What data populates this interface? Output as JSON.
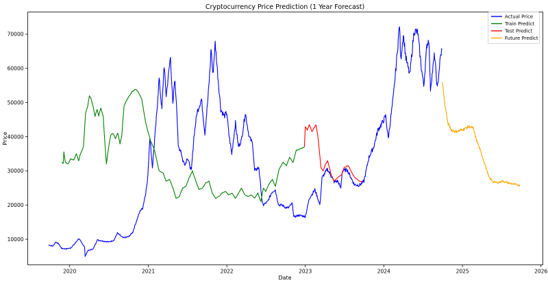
{
  "chart_data": {
    "type": "line",
    "title": "Cryptocurrency Price Prediction (1 Year Forecast)",
    "xlabel": "Date",
    "ylabel": "Price",
    "xlim": [
      "2019-06-20",
      "2026-01-10"
    ],
    "ylim": [
      2500,
      76500
    ],
    "x_ticks": [
      "2020",
      "2021",
      "2022",
      "2023",
      "2024",
      "2025",
      "2026"
    ],
    "y_ticks": [
      10000,
      20000,
      30000,
      40000,
      50000,
      60000,
      70000
    ],
    "grid": false,
    "legend_position": "top-right",
    "series": [
      {
        "name": "Actual Price",
        "color": "#0000ff",
        "points": [
          [
            "2019-09-25",
            8300
          ],
          [
            "2019-10-15",
            8000
          ],
          [
            "2019-10-28",
            9200
          ],
          [
            "2019-11-10",
            8700
          ],
          [
            "2019-11-25",
            7300
          ],
          [
            "2019-12-15",
            7200
          ],
          [
            "2020-01-05",
            7400
          ],
          [
            "2020-01-25",
            8700
          ],
          [
            "2020-02-12",
            10200
          ],
          [
            "2020-03-01",
            8600
          ],
          [
            "2020-03-10",
            7800
          ],
          [
            "2020-03-13",
            5000
          ],
          [
            "2020-03-25",
            6600
          ],
          [
            "2020-04-20",
            7200
          ],
          [
            "2020-05-08",
            9800
          ],
          [
            "2020-06-01",
            9500
          ],
          [
            "2020-07-01",
            9200
          ],
          [
            "2020-07-25",
            9700
          ],
          [
            "2020-08-10",
            11800
          ],
          [
            "2020-09-05",
            10400
          ],
          [
            "2020-10-01",
            10700
          ],
          [
            "2020-10-20",
            12000
          ],
          [
            "2020-11-05",
            15000
          ],
          [
            "2020-11-25",
            18500
          ],
          [
            "2020-12-05",
            19000
          ],
          [
            "2020-12-18",
            23000
          ],
          [
            "2020-12-28",
            27000
          ],
          [
            "2021-01-08",
            40000
          ],
          [
            "2021-01-20",
            31000
          ],
          [
            "2021-02-08",
            46000
          ],
          [
            "2021-02-20",
            57000
          ],
          [
            "2021-03-05",
            48000
          ],
          [
            "2021-03-15",
            61000
          ],
          [
            "2021-03-25",
            52000
          ],
          [
            "2021-04-14",
            63500
          ],
          [
            "2021-04-25",
            49000
          ],
          [
            "2021-05-03",
            57000
          ],
          [
            "2021-05-12",
            50000
          ],
          [
            "2021-05-20",
            37000
          ],
          [
            "2021-06-01",
            36000
          ],
          [
            "2021-06-10",
            33000
          ],
          [
            "2021-06-22",
            32000
          ],
          [
            "2021-07-01",
            34000
          ],
          [
            "2021-07-20",
            30000
          ],
          [
            "2021-08-01",
            40000
          ],
          [
            "2021-08-15",
            47000
          ],
          [
            "2021-09-05",
            51000
          ],
          [
            "2021-09-21",
            41000
          ],
          [
            "2021-10-05",
            51000
          ],
          [
            "2021-10-15",
            60000
          ],
          [
            "2021-10-20",
            66000
          ],
          [
            "2021-10-28",
            58000
          ],
          [
            "2021-11-08",
            67500
          ],
          [
            "2021-11-20",
            58000
          ],
          [
            "2021-12-04",
            48000
          ],
          [
            "2021-12-20",
            46000
          ],
          [
            "2022-01-01",
            47000
          ],
          [
            "2022-01-10",
            41000
          ],
          [
            "2022-01-24",
            35000
          ],
          [
            "2022-02-10",
            44000
          ],
          [
            "2022-02-24",
            37000
          ],
          [
            "2022-03-10",
            39000
          ],
          [
            "2022-03-28",
            47000
          ],
          [
            "2022-04-15",
            40000
          ],
          [
            "2022-05-01",
            38000
          ],
          [
            "2022-05-10",
            30000
          ],
          [
            "2022-05-30",
            31000
          ],
          [
            "2022-06-15",
            20500
          ],
          [
            "2022-06-20",
            20000
          ],
          [
            "2022-07-10",
            21000
          ],
          [
            "2022-07-30",
            23800
          ],
          [
            "2022-08-14",
            24500
          ],
          [
            "2022-08-30",
            20000
          ],
          [
            "2022-09-15",
            20000
          ],
          [
            "2022-10-01",
            19300
          ],
          [
            "2022-10-15",
            19200
          ],
          [
            "2022-11-01",
            20500
          ],
          [
            "2022-11-09",
            16500
          ],
          [
            "2022-12-01",
            17000
          ],
          [
            "2022-12-20",
            16800
          ],
          [
            "2023-01-01",
            16600
          ],
          [
            "2023-01-20",
            22000
          ],
          [
            "2023-02-15",
            24500
          ],
          [
            "2023-03-10",
            20000
          ],
          [
            "2023-03-20",
            28000
          ],
          [
            "2023-04-14",
            30500
          ],
          [
            "2023-05-01",
            28500
          ],
          [
            "2023-05-15",
            26800
          ],
          [
            "2023-06-01",
            27000
          ],
          [
            "2023-06-15",
            25000
          ],
          [
            "2023-06-22",
            30000
          ],
          [
            "2023-07-15",
            30300
          ],
          [
            "2023-08-17",
            26000
          ],
          [
            "2023-09-10",
            25800
          ],
          [
            "2023-10-01",
            27000
          ],
          [
            "2023-10-24",
            34000
          ],
          [
            "2023-11-15",
            37000
          ],
          [
            "2023-12-05",
            42000
          ],
          [
            "2023-12-20",
            43500
          ],
          [
            "2024-01-10",
            46000
          ],
          [
            "2024-01-22",
            39500
          ],
          [
            "2024-02-15",
            52000
          ],
          [
            "2024-02-28",
            61000
          ],
          [
            "2024-03-08",
            68000
          ],
          [
            "2024-03-14",
            73000
          ],
          [
            "2024-03-20",
            62500
          ],
          [
            "2024-04-01",
            70000
          ],
          [
            "2024-04-13",
            63000
          ],
          [
            "2024-05-01",
            58000
          ],
          [
            "2024-05-21",
            71000
          ],
          [
            "2024-06-07",
            70500
          ],
          [
            "2024-06-24",
            60000
          ],
          [
            "2024-07-05",
            55000
          ],
          [
            "2024-07-20",
            67000
          ],
          [
            "2024-07-29",
            68500
          ],
          [
            "2024-08-05",
            54000
          ],
          [
            "2024-08-24",
            64000
          ],
          [
            "2024-09-06",
            54000
          ],
          [
            "2024-09-20",
            63000
          ],
          [
            "2024-09-27",
            65500
          ]
        ]
      },
      {
        "name": "Train Predict",
        "color": "#008000",
        "points": [
          [
            "2019-11-25",
            32500
          ],
          [
            "2019-12-02",
            32200
          ],
          [
            "2019-12-05",
            35500
          ],
          [
            "2019-12-12",
            32500
          ],
          [
            "2019-12-25",
            32000
          ],
          [
            "2020-01-05",
            33500
          ],
          [
            "2020-01-20",
            33200
          ],
          [
            "2020-02-01",
            35000
          ],
          [
            "2020-02-12",
            33000
          ],
          [
            "2020-02-20",
            35000
          ],
          [
            "2020-03-05",
            37000
          ],
          [
            "2020-03-15",
            47000
          ],
          [
            "2020-03-25",
            49000
          ],
          [
            "2020-04-02",
            52000
          ],
          [
            "2020-04-10",
            51000
          ],
          [
            "2020-04-20",
            48500
          ],
          [
            "2020-04-28",
            46000
          ],
          [
            "2020-05-08",
            48000
          ],
          [
            "2020-05-15",
            46000
          ],
          [
            "2020-05-25",
            48500
          ],
          [
            "2020-06-05",
            46000
          ],
          [
            "2020-06-12",
            39000
          ],
          [
            "2020-06-20",
            32000
          ],
          [
            "2020-06-28",
            36000
          ],
          [
            "2020-07-10",
            40500
          ],
          [
            "2020-07-20",
            41000
          ],
          [
            "2020-08-01",
            39500
          ],
          [
            "2020-08-12",
            41000
          ],
          [
            "2020-08-22",
            38000
          ],
          [
            "2020-08-30",
            40000
          ],
          [
            "2020-09-10",
            49000
          ],
          [
            "2020-09-25",
            51000
          ],
          [
            "2020-10-15",
            53000
          ],
          [
            "2020-11-01",
            54000
          ],
          [
            "2020-11-15",
            53000
          ],
          [
            "2020-12-01",
            51000
          ],
          [
            "2020-12-20",
            44000
          ],
          [
            "2021-01-10",
            39000
          ],
          [
            "2021-01-30",
            36000
          ],
          [
            "2021-02-20",
            30000
          ],
          [
            "2021-03-10",
            29500
          ],
          [
            "2021-03-25",
            27000
          ],
          [
            "2021-04-10",
            27500
          ],
          [
            "2021-04-25",
            25000
          ],
          [
            "2021-05-10",
            22000
          ],
          [
            "2021-05-25",
            22500
          ],
          [
            "2021-06-10",
            25000
          ],
          [
            "2021-06-25",
            25500
          ],
          [
            "2021-07-10",
            28000
          ],
          [
            "2021-07-25",
            30000
          ],
          [
            "2021-08-10",
            27000
          ],
          [
            "2021-08-25",
            24500
          ],
          [
            "2021-09-10",
            25000
          ],
          [
            "2021-09-25",
            26500
          ],
          [
            "2021-10-10",
            27000
          ],
          [
            "2021-10-25",
            23500
          ],
          [
            "2021-11-10",
            22000
          ],
          [
            "2021-11-25",
            22500
          ],
          [
            "2021-12-10",
            23500
          ],
          [
            "2021-12-25",
            24000
          ],
          [
            "2022-01-10",
            23000
          ],
          [
            "2022-01-25",
            23500
          ],
          [
            "2022-02-10",
            22000
          ],
          [
            "2022-02-25",
            23500
          ],
          [
            "2022-03-10",
            25000
          ],
          [
            "2022-03-25",
            23000
          ],
          [
            "2022-04-10",
            22500
          ],
          [
            "2022-04-25",
            23000
          ],
          [
            "2022-05-10",
            22000
          ],
          [
            "2022-05-25",
            23500
          ],
          [
            "2022-06-08",
            21000
          ],
          [
            "2022-06-20",
            25000
          ],
          [
            "2022-07-01",
            24000
          ],
          [
            "2022-07-15",
            26000
          ],
          [
            "2022-08-01",
            27500
          ],
          [
            "2022-08-15",
            25500
          ],
          [
            "2022-09-01",
            30500
          ],
          [
            "2022-09-20",
            32500
          ],
          [
            "2022-10-05",
            31500
          ],
          [
            "2022-10-20",
            34000
          ],
          [
            "2022-11-05",
            32500
          ],
          [
            "2022-11-20",
            36000
          ],
          [
            "2022-12-10",
            36500
          ],
          [
            "2022-12-28",
            37000
          ]
        ]
      },
      {
        "name": "Test Predict",
        "color": "#ff0000",
        "points": [
          [
            "2022-12-28",
            37000
          ],
          [
            "2023-01-01",
            43000
          ],
          [
            "2023-01-10",
            42000
          ],
          [
            "2023-01-20",
            43500
          ],
          [
            "2023-02-01",
            41500
          ],
          [
            "2023-02-10",
            42500
          ],
          [
            "2023-02-20",
            43500
          ],
          [
            "2023-03-01",
            40000
          ],
          [
            "2023-03-15",
            31000
          ],
          [
            "2023-03-25",
            30000
          ],
          [
            "2023-04-05",
            32000
          ],
          [
            "2023-04-15",
            33000
          ],
          [
            "2023-05-01",
            29000
          ],
          [
            "2023-05-15",
            27000
          ],
          [
            "2023-06-01",
            28000
          ],
          [
            "2023-06-20",
            29000
          ],
          [
            "2023-07-01",
            31000
          ],
          [
            "2023-07-20",
            31500
          ],
          [
            "2023-08-05",
            29500
          ],
          [
            "2023-08-20",
            28000
          ],
          [
            "2023-09-10",
            27000
          ],
          [
            "2023-09-25",
            26800
          ]
        ]
      },
      {
        "name": "Future Predict",
        "color": "#ffa500",
        "points": [
          [
            "2024-09-29",
            56500
          ],
          [
            "2024-10-10",
            50000
          ],
          [
            "2024-10-25",
            44000
          ],
          [
            "2024-11-10",
            42000
          ],
          [
            "2024-12-01",
            41500
          ],
          [
            "2024-12-20",
            41800
          ],
          [
            "2025-01-10",
            42300
          ],
          [
            "2025-02-01",
            43000
          ],
          [
            "2025-02-20",
            42500
          ],
          [
            "2025-03-05",
            39500
          ],
          [
            "2025-03-25",
            36000
          ],
          [
            "2025-04-15",
            32000
          ],
          [
            "2025-05-05",
            28000
          ],
          [
            "2025-05-25",
            26800
          ],
          [
            "2025-06-15",
            26500
          ],
          [
            "2025-07-05",
            27000
          ],
          [
            "2025-08-01",
            26500
          ],
          [
            "2025-08-20",
            26200
          ],
          [
            "2025-09-05",
            26000
          ],
          [
            "2025-09-25",
            25800
          ]
        ]
      }
    ]
  }
}
